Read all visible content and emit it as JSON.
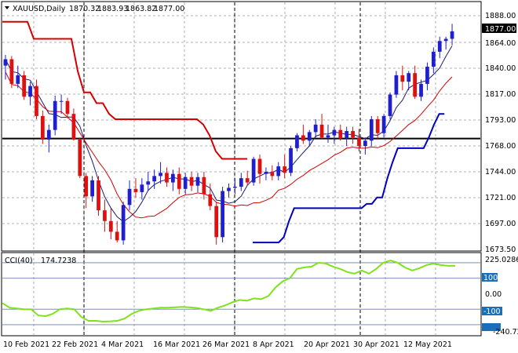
{
  "header": {
    "symbol": "XAUUSD,Daily",
    "open": "1870.32",
    "high": "1883.93",
    "low": "1863.82",
    "close": "1877.00"
  },
  "price_axis": {
    "ticks": [
      "1888.00",
      "1864.00",
      "1840.00",
      "1817.00",
      "1793.00",
      "1768.00",
      "1744.00",
      "1721.00",
      "1697.00",
      "1673.50"
    ],
    "current_price": "1877.00"
  },
  "cci_panel": {
    "label": "CCI(40)",
    "value": "174.7238",
    "axis_top": "225.0286",
    "axis_bottom": "-240.7252",
    "levels": [
      "200",
      "100",
      "0.00",
      "-100",
      "-200"
    ]
  },
  "date_axis": [
    "10 Feb 2021",
    "22 Feb 2021",
    "4 Mar 2021",
    "16 Mar 2021",
    "26 Mar 2021",
    "8 Apr 2021",
    "20 Apr 2021",
    "30 Apr 2021",
    "12 May 2021"
  ],
  "colors": {
    "bull": "#1f1fd0",
    "bear": "#e01010",
    "support_channel": "#0000c0",
    "resistance_channel": "#d40000",
    "cci_line": "#7fe31a",
    "horizontal_level": "#000000"
  },
  "chart_data": {
    "type": "candlestick",
    "ylim": [
      1673.5,
      1896
    ],
    "horizontal_level": 1777,
    "candles": [
      {
        "o": 1845,
        "h": 1855,
        "l": 1832,
        "c": 1851
      },
      {
        "o": 1851,
        "h": 1854,
        "l": 1824,
        "c": 1828
      },
      {
        "o": 1828,
        "h": 1845,
        "l": 1824,
        "c": 1836
      },
      {
        "o": 1836,
        "h": 1840,
        "l": 1813,
        "c": 1816
      },
      {
        "o": 1816,
        "h": 1830,
        "l": 1808,
        "c": 1826
      },
      {
        "o": 1826,
        "h": 1832,
        "l": 1795,
        "c": 1798
      },
      {
        "o": 1798,
        "h": 1803,
        "l": 1772,
        "c": 1776
      },
      {
        "o": 1776,
        "h": 1790,
        "l": 1764,
        "c": 1785
      },
      {
        "o": 1785,
        "h": 1817,
        "l": 1780,
        "c": 1812
      },
      {
        "o": 1812,
        "h": 1818,
        "l": 1800,
        "c": 1812
      },
      {
        "o": 1812,
        "h": 1815,
        "l": 1796,
        "c": 1800
      },
      {
        "o": 1800,
        "h": 1805,
        "l": 1775,
        "c": 1776
      },
      {
        "o": 1776,
        "h": 1778,
        "l": 1740,
        "c": 1742
      },
      {
        "o": 1742,
        "h": 1745,
        "l": 1712,
        "c": 1723
      },
      {
        "o": 1723,
        "h": 1742,
        "l": 1718,
        "c": 1738
      },
      {
        "o": 1738,
        "h": 1742,
        "l": 1705,
        "c": 1710
      },
      {
        "o": 1710,
        "h": 1720,
        "l": 1690,
        "c": 1700
      },
      {
        "o": 1700,
        "h": 1712,
        "l": 1683,
        "c": 1690
      },
      {
        "o": 1690,
        "h": 1700,
        "l": 1680,
        "c": 1682
      },
      {
        "o": 1682,
        "h": 1718,
        "l": 1678,
        "c": 1715
      },
      {
        "o": 1715,
        "h": 1738,
        "l": 1710,
        "c": 1730
      },
      {
        "o": 1730,
        "h": 1740,
        "l": 1722,
        "c": 1727
      },
      {
        "o": 1727,
        "h": 1740,
        "l": 1720,
        "c": 1734
      },
      {
        "o": 1734,
        "h": 1746,
        "l": 1728,
        "c": 1737
      },
      {
        "o": 1737,
        "h": 1748,
        "l": 1730,
        "c": 1742
      },
      {
        "o": 1742,
        "h": 1755,
        "l": 1735,
        "c": 1745
      },
      {
        "o": 1745,
        "h": 1750,
        "l": 1732,
        "c": 1736
      },
      {
        "o": 1736,
        "h": 1748,
        "l": 1728,
        "c": 1744
      },
      {
        "o": 1744,
        "h": 1750,
        "l": 1725,
        "c": 1730
      },
      {
        "o": 1730,
        "h": 1745,
        "l": 1725,
        "c": 1741
      },
      {
        "o": 1741,
        "h": 1746,
        "l": 1728,
        "c": 1733
      },
      {
        "o": 1733,
        "h": 1745,
        "l": 1727,
        "c": 1741
      },
      {
        "o": 1741,
        "h": 1746,
        "l": 1720,
        "c": 1725
      },
      {
        "o": 1725,
        "h": 1735,
        "l": 1710,
        "c": 1714
      },
      {
        "o": 1714,
        "h": 1718,
        "l": 1678,
        "c": 1685
      },
      {
        "o": 1685,
        "h": 1732,
        "l": 1680,
        "c": 1728
      },
      {
        "o": 1728,
        "h": 1735,
        "l": 1722,
        "c": 1731
      },
      {
        "o": 1731,
        "h": 1740,
        "l": 1725,
        "c": 1732
      },
      {
        "o": 1732,
        "h": 1745,
        "l": 1728,
        "c": 1740
      },
      {
        "o": 1740,
        "h": 1747,
        "l": 1733,
        "c": 1736
      },
      {
        "o": 1736,
        "h": 1760,
        "l": 1733,
        "c": 1758
      },
      {
        "o": 1758,
        "h": 1762,
        "l": 1735,
        "c": 1744
      },
      {
        "o": 1744,
        "h": 1750,
        "l": 1738,
        "c": 1746
      },
      {
        "o": 1746,
        "h": 1752,
        "l": 1738,
        "c": 1742
      },
      {
        "o": 1742,
        "h": 1755,
        "l": 1738,
        "c": 1751
      },
      {
        "o": 1751,
        "h": 1762,
        "l": 1740,
        "c": 1745
      },
      {
        "o": 1745,
        "h": 1770,
        "l": 1742,
        "c": 1768
      },
      {
        "o": 1768,
        "h": 1782,
        "l": 1765,
        "c": 1780
      },
      {
        "o": 1780,
        "h": 1790,
        "l": 1772,
        "c": 1775
      },
      {
        "o": 1775,
        "h": 1785,
        "l": 1770,
        "c": 1783
      },
      {
        "o": 1783,
        "h": 1795,
        "l": 1778,
        "c": 1790
      },
      {
        "o": 1790,
        "h": 1800,
        "l": 1776,
        "c": 1778
      },
      {
        "o": 1778,
        "h": 1790,
        "l": 1773,
        "c": 1780
      },
      {
        "o": 1780,
        "h": 1788,
        "l": 1772,
        "c": 1785
      },
      {
        "o": 1785,
        "h": 1790,
        "l": 1775,
        "c": 1777
      },
      {
        "o": 1777,
        "h": 1788,
        "l": 1770,
        "c": 1784
      },
      {
        "o": 1784,
        "h": 1788,
        "l": 1772,
        "c": 1778
      },
      {
        "o": 1778,
        "h": 1786,
        "l": 1765,
        "c": 1770
      },
      {
        "o": 1770,
        "h": 1778,
        "l": 1762,
        "c": 1775
      },
      {
        "o": 1775,
        "h": 1798,
        "l": 1770,
        "c": 1795
      },
      {
        "o": 1795,
        "h": 1798,
        "l": 1776,
        "c": 1782
      },
      {
        "o": 1782,
        "h": 1800,
        "l": 1778,
        "c": 1798
      },
      {
        "o": 1798,
        "h": 1820,
        "l": 1795,
        "c": 1818
      },
      {
        "o": 1818,
        "h": 1840,
        "l": 1815,
        "c": 1836
      },
      {
        "o": 1836,
        "h": 1845,
        "l": 1822,
        "c": 1830
      },
      {
        "o": 1830,
        "h": 1840,
        "l": 1822,
        "c": 1838
      },
      {
        "o": 1838,
        "h": 1845,
        "l": 1814,
        "c": 1816
      },
      {
        "o": 1816,
        "h": 1832,
        "l": 1812,
        "c": 1828
      },
      {
        "o": 1828,
        "h": 1848,
        "l": 1822,
        "c": 1844
      },
      {
        "o": 1844,
        "h": 1862,
        "l": 1838,
        "c": 1858
      },
      {
        "o": 1858,
        "h": 1872,
        "l": 1852,
        "c": 1868
      },
      {
        "o": 1868,
        "h": 1872,
        "l": 1860,
        "c": 1870
      },
      {
        "o": 1870,
        "h": 1884,
        "l": 1864,
        "c": 1877
      }
    ],
    "resistance_channel": [
      1886,
      1886,
      1886,
      1886,
      1886,
      1870,
      1870,
      1870,
      1870,
      1870,
      1870,
      1870,
      1840,
      1820,
      1820,
      1810,
      1810,
      1800,
      1795,
      1795,
      1795,
      1795,
      1795,
      1795,
      1795,
      1795,
      1795,
      1795,
      1795,
      1795,
      1795,
      1795,
      1790,
      1780,
      1765,
      1758,
      1758,
      1758,
      1758,
      1758
    ],
    "support_channel": [
      1680,
      1680,
      1680,
      1680,
      1680,
      1680,
      1685,
      1700,
      1712,
      1712,
      1712,
      1712,
      1712,
      1712,
      1712,
      1712,
      1712,
      1712,
      1712,
      1712,
      1712,
      1712,
      1716,
      1716,
      1722,
      1722,
      1740,
      1755,
      1768,
      1768,
      1768,
      1768,
      1768,
      1768,
      1778,
      1790,
      1800,
      1800
    ],
    "cci": [
      -60,
      -90,
      -95,
      -100,
      -100,
      -140,
      -145,
      -130,
      -100,
      -95,
      -100,
      -150,
      -175,
      -175,
      -180,
      -178,
      -175,
      -160,
      -130,
      -110,
      -100,
      -95,
      -90,
      -90,
      -88,
      -85,
      -88,
      -92,
      -100,
      -110,
      -90,
      -75,
      -55,
      -40,
      -45,
      -30,
      -35,
      -15,
      40,
      80,
      100,
      160,
      170,
      175,
      200,
      195,
      175,
      160,
      140,
      130,
      150,
      130,
      160,
      200,
      215,
      200,
      170,
      150,
      165,
      185,
      195,
      185,
      180,
      180
    ]
  }
}
